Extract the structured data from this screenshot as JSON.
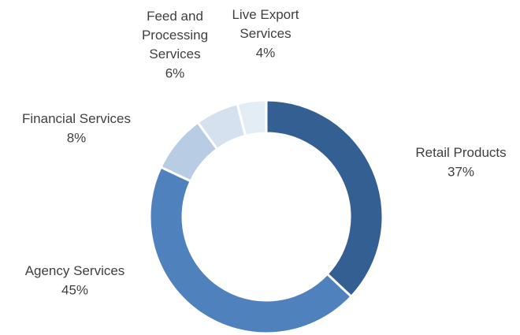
{
  "chart_data": {
    "type": "donut",
    "categories": [
      "Retail Products",
      "Agency Services",
      "Financial Services",
      "Feed and Processing Services",
      "Live Export Services"
    ],
    "values": [
      37,
      45,
      8,
      6,
      4
    ],
    "value_labels": [
      "37%",
      "45%",
      "8%",
      "6%",
      "4%"
    ],
    "colors": [
      "#345f92",
      "#4f81bd",
      "#b8cce4",
      "#d6e1ef",
      "#e2edf5"
    ]
  }
}
